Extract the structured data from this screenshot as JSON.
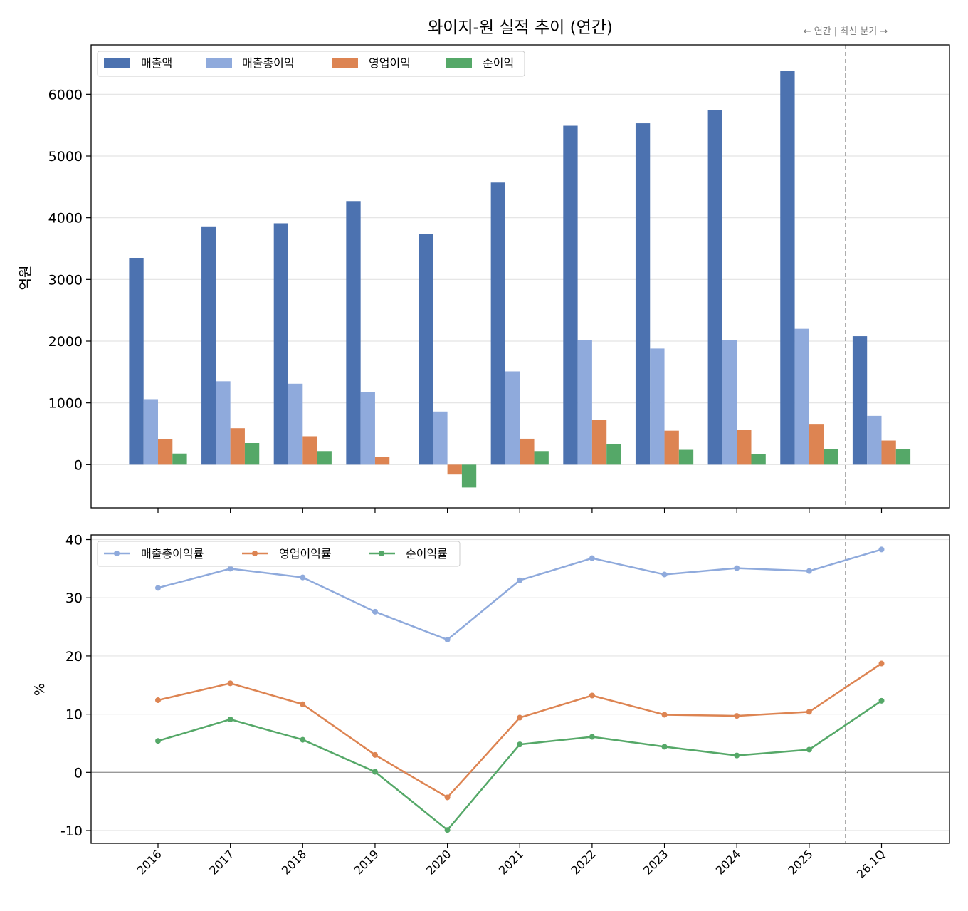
{
  "chart_data": [
    {
      "type": "bar",
      "title": "와이지-원 실적 추이 (연간)",
      "annotation": "← 연간 | 최신 분기 →",
      "ylabel": "억원",
      "xlabel": "",
      "ylim": [
        -700,
        6800
      ],
      "yticks": [
        0,
        1000,
        2000,
        3000,
        4000,
        5000,
        6000
      ],
      "grid": true,
      "legend_position": "top-left",
      "categories": [
        "2016",
        "2017",
        "2018",
        "2019",
        "2020",
        "2021",
        "2022",
        "2023",
        "2024",
        "2025",
        "26.1Q"
      ],
      "series": [
        {
          "name": "매출액",
          "color": "#4c72b0",
          "values": [
            3350,
            3860,
            3910,
            4270,
            3740,
            4570,
            5490,
            5530,
            5740,
            6380,
            2080
          ]
        },
        {
          "name": "매출총이익",
          "color": "#8faadc",
          "values": [
            1060,
            1350,
            1310,
            1180,
            860,
            1510,
            2020,
            1880,
            2020,
            2200,
            790
          ]
        },
        {
          "name": "영업이익",
          "color": "#dd8452",
          "values": [
            410,
            590,
            460,
            130,
            -160,
            420,
            720,
            550,
            560,
            660,
            390
          ]
        },
        {
          "name": "순이익",
          "color": "#55a868",
          "values": [
            180,
            350,
            220,
            0,
            -370,
            220,
            330,
            240,
            170,
            250,
            250
          ]
        }
      ]
    },
    {
      "type": "line",
      "ylabel": "%",
      "xlabel": "",
      "ylim": [
        -12.2,
        40.8
      ],
      "yticks": [
        -10,
        0,
        10,
        20,
        30,
        40
      ],
      "grid": true,
      "legend_position": "top-left",
      "categories": [
        "2016",
        "2017",
        "2018",
        "2019",
        "2020",
        "2021",
        "2022",
        "2023",
        "2024",
        "2025",
        "26.1Q"
      ],
      "series": [
        {
          "name": "매출총이익률",
          "color": "#8faadc",
          "values": [
            31.7,
            35.0,
            33.5,
            27.6,
            22.8,
            33.0,
            36.8,
            34.0,
            35.1,
            34.6,
            38.3
          ]
        },
        {
          "name": "영업이익률",
          "color": "#dd8452",
          "values": [
            12.4,
            15.3,
            11.7,
            3.0,
            -4.3,
            9.4,
            13.2,
            9.9,
            9.7,
            10.4,
            18.7
          ]
        },
        {
          "name": "순이익률",
          "color": "#55a868",
          "values": [
            5.4,
            9.1,
            5.6,
            0.1,
            -9.9,
            4.8,
            6.1,
            4.4,
            2.9,
            3.9,
            12.3
          ]
        }
      ]
    }
  ]
}
